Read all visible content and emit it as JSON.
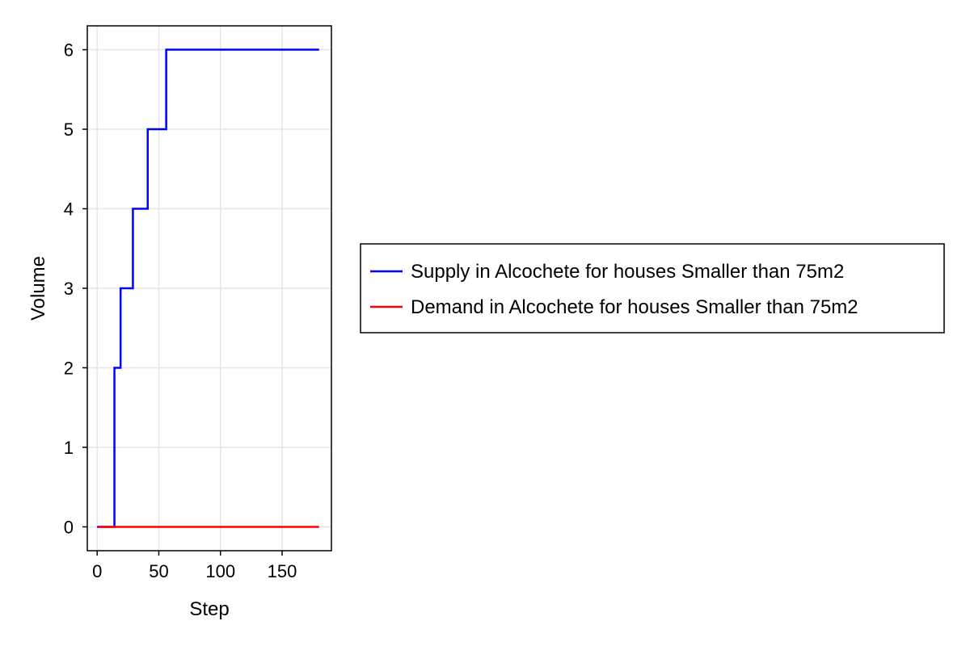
{
  "chart_data": {
    "type": "line",
    "title": "",
    "xlabel": "Step",
    "ylabel": "Volume",
    "xlim": [
      -8,
      190
    ],
    "ylim": [
      -0.3,
      6.3
    ],
    "xticks": [
      0,
      50,
      100,
      150
    ],
    "yticks": [
      0,
      1,
      2,
      3,
      4,
      5,
      6
    ],
    "grid": true,
    "legend_position": "right",
    "series": [
      {
        "name": "Supply in Alcochete for houses Smaller than 75m2",
        "color": "#0000ff",
        "step": true,
        "x": [
          0,
          12,
          14,
          19,
          29,
          41,
          56,
          180
        ],
        "y": [
          0,
          0,
          2,
          3,
          4,
          5,
          6,
          6
        ]
      },
      {
        "name": "Demand in Alcochete for houses Smaller than 75m2",
        "color": "#ff0000",
        "step": false,
        "x": [
          1,
          180
        ],
        "y": [
          0,
          0
        ]
      }
    ]
  }
}
